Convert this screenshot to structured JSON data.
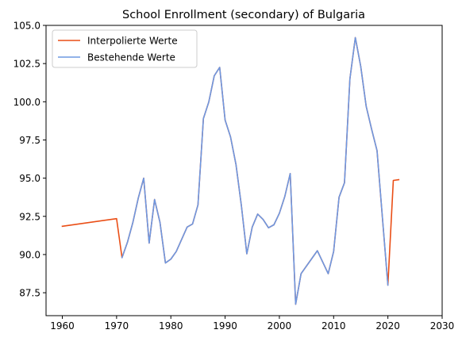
{
  "chart_data": {
    "type": "line",
    "title": "School Enrollment (secondary) of Bulgaria",
    "xlabel": "",
    "ylabel": "",
    "xlim": [
      1957,
      2030
    ],
    "ylim": [
      86,
      105
    ],
    "xticks": [
      1960,
      1970,
      1980,
      1990,
      2000,
      2010,
      2020,
      2030
    ],
    "yticks": [
      87.5,
      90.0,
      92.5,
      95.0,
      97.5,
      100.0,
      102.5,
      105.0
    ],
    "grid": false,
    "legend_position": "top-left",
    "series": [
      {
        "name": "Interpolierte Werte",
        "color": "#ea4e16",
        "x": [
          1960,
          1970,
          1971,
          1972,
          1973,
          1974,
          1975,
          1976,
          1977,
          1978,
          1979,
          1980,
          1981,
          1982,
          1983,
          1984,
          1985,
          1986,
          1987,
          1988,
          1989,
          1990,
          1991,
          1992,
          1993,
          1994,
          1995,
          1996,
          1997,
          1998,
          1999,
          2000,
          2001,
          2002,
          2003,
          2004,
          2005,
          2006,
          2007,
          2008,
          2009,
          2010,
          2011,
          2012,
          2013,
          2014,
          2015,
          2016,
          2017,
          2018,
          2019,
          2020,
          2021,
          2022
        ],
        "values": [
          91.85,
          92.35,
          89.8,
          90.8,
          92.1,
          93.7,
          95.0,
          90.75,
          93.6,
          92.1,
          89.45,
          89.7,
          90.2,
          91.0,
          91.8,
          92.0,
          93.25,
          98.9,
          100.0,
          101.7,
          102.25,
          98.8,
          97.7,
          95.9,
          93.2,
          90.05,
          91.8,
          92.65,
          92.3,
          91.75,
          91.95,
          92.7,
          93.8,
          95.3,
          86.75,
          88.75,
          89.25,
          89.75,
          90.25,
          89.5,
          88.75,
          90.2,
          93.75,
          94.7,
          101.5,
          104.2,
          102.3,
          99.7,
          98.2,
          96.8,
          92.35,
          88.0,
          94.85,
          94.9
        ]
      },
      {
        "name": "Bestehende Werte",
        "color": "#6d98e2",
        "x": [
          1971,
          1972,
          1973,
          1974,
          1975,
          1976,
          1977,
          1978,
          1979,
          1980,
          1981,
          1982,
          1983,
          1984,
          1985,
          1986,
          1987,
          1988,
          1989,
          1990,
          1991,
          1992,
          1993,
          1994,
          1995,
          1996,
          1997,
          1998,
          1999,
          2000,
          2001,
          2002,
          2003,
          2004,
          2007,
          2009,
          2010,
          2011,
          2012,
          2013,
          2014,
          2015,
          2016,
          2017,
          2018,
          2020
        ],
        "values": [
          89.8,
          90.8,
          92.1,
          93.7,
          95.0,
          90.75,
          93.6,
          92.1,
          89.45,
          89.7,
          90.2,
          91.0,
          91.8,
          92.0,
          93.25,
          98.9,
          100.0,
          101.7,
          102.25,
          98.8,
          97.7,
          95.9,
          93.2,
          90.05,
          91.8,
          92.65,
          92.3,
          91.75,
          91.95,
          92.7,
          93.8,
          95.3,
          86.75,
          88.75,
          90.25,
          88.75,
          90.2,
          93.75,
          94.7,
          101.5,
          104.2,
          102.3,
          99.7,
          98.2,
          96.8,
          88.0
        ]
      }
    ]
  }
}
